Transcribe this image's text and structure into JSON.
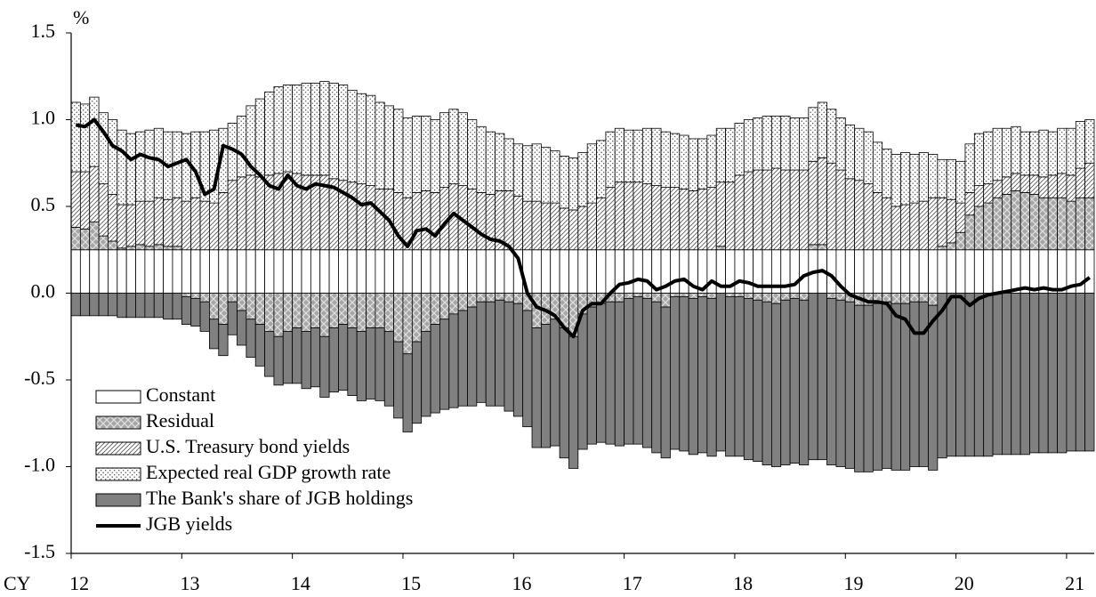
{
  "chart_data": {
    "type": "stacked-bar-line",
    "y_axis_label": "%",
    "x_axis_label": "CY",
    "legend": "lower left",
    "ylim": [
      -1.5,
      1.5
    ],
    "yticks": [
      1.5,
      {
        "value": 1,
        "label": "1.0"
      },
      0.5,
      {
        "value": 0,
        "label": "0.0"
      },
      -0.5,
      {
        "value": -1,
        "label": "-1.0"
      },
      -1.5
    ],
    "categories": [
      "12",
      null,
      null,
      null,
      null,
      null,
      null,
      null,
      null,
      null,
      null,
      null,
      "13",
      null,
      null,
      null,
      null,
      null,
      null,
      null,
      null,
      null,
      null,
      null,
      "14",
      null,
      null,
      null,
      null,
      null,
      null,
      null,
      null,
      null,
      null,
      null,
      "15",
      null,
      null,
      null,
      null,
      null,
      null,
      null,
      null,
      null,
      null,
      null,
      "16",
      null,
      null,
      null,
      null,
      null,
      null,
      null,
      null,
      null,
      null,
      null,
      "17",
      null,
      null,
      null,
      null,
      null,
      null,
      null,
      null,
      null,
      null,
      null,
      "18",
      null,
      null,
      null,
      null,
      null,
      null,
      null,
      null,
      null,
      null,
      null,
      "19",
      null,
      null,
      null,
      null,
      null,
      null,
      null,
      null,
      null,
      null,
      null,
      "20",
      null,
      null,
      null,
      null,
      null,
      null,
      null,
      null,
      null,
      null,
      null,
      "21",
      null,
      null
    ],
    "series": [
      {
        "name": "Constant",
        "type": "bar",
        "color": "#ffffff",
        "pattern": "solid",
        "values": [
          0.25,
          0.25,
          0.25,
          0.25,
          0.25,
          0.25,
          0.25,
          0.25,
          0.25,
          0.25,
          0.25,
          0.25,
          0.25,
          0.25,
          0.25,
          0.25,
          0.25,
          0.25,
          0.25,
          0.25,
          0.25,
          0.25,
          0.25,
          0.25,
          0.25,
          0.25,
          0.25,
          0.25,
          0.25,
          0.25,
          0.25,
          0.25,
          0.25,
          0.25,
          0.25,
          0.25,
          0.25,
          0.25,
          0.25,
          0.25,
          0.25,
          0.25,
          0.25,
          0.25,
          0.25,
          0.25,
          0.25,
          0.25,
          0.25,
          0.25,
          0.25,
          0.25,
          0.25,
          0.25,
          0.25,
          0.25,
          0.25,
          0.25,
          0.25,
          0.25,
          0.25,
          0.25,
          0.25,
          0.25,
          0.25,
          0.25,
          0.25,
          0.25,
          0.25,
          0.25,
          0.25,
          0.25,
          0.25,
          0.25,
          0.25,
          0.25,
          0.25,
          0.25,
          0.25,
          0.25,
          0.25,
          0.25,
          0.25,
          0.25,
          0.25,
          0.25,
          0.25,
          0.25,
          0.25,
          0.25,
          0.25,
          0.25,
          0.25,
          0.25,
          0.25,
          0.25,
          0.25,
          0.25,
          0.25,
          0.25,
          0.25,
          0.25,
          0.25,
          0.25,
          0.25,
          0.25,
          0.25,
          0.25,
          0.25,
          0.25,
          0.25
        ]
      },
      {
        "name": "Residual",
        "type": "bar",
        "color": "#a6a6a6",
        "pattern": "crosshatch",
        "values": [
          0.13,
          0.12,
          0.16,
          0.08,
          0.05,
          0.01,
          0.02,
          0.03,
          0.02,
          0.03,
          0.02,
          0.02,
          -0.02,
          -0.03,
          -0.05,
          -0.15,
          -0.18,
          -0.05,
          -0.1,
          -0.15,
          -0.18,
          -0.22,
          -0.25,
          -0.22,
          -0.2,
          -0.22,
          -0.2,
          -0.25,
          -0.2,
          -0.18,
          -0.2,
          -0.22,
          -0.2,
          -0.2,
          -0.22,
          -0.28,
          -0.35,
          -0.28,
          -0.22,
          -0.18,
          -0.15,
          -0.12,
          -0.1,
          -0.08,
          -0.05,
          -0.05,
          -0.04,
          -0.05,
          -0.06,
          -0.1,
          -0.2,
          -0.18,
          -0.15,
          -0.2,
          -0.25,
          -0.12,
          -0.08,
          -0.06,
          -0.05,
          -0.05,
          -0.03,
          -0.02,
          -0.03,
          -0.05,
          -0.08,
          -0.02,
          -0.02,
          -0.03,
          -0.02,
          -0.03,
          0.02,
          -0.02,
          -0.02,
          -0.03,
          -0.04,
          -0.05,
          -0.06,
          -0.04,
          -0.03,
          -0.04,
          0.03,
          0.03,
          -0.03,
          -0.04,
          -0.05,
          -0.07,
          -0.07,
          -0.06,
          -0.05,
          -0.06,
          -0.06,
          -0.05,
          -0.05,
          -0.07,
          0.02,
          0.04,
          0.1,
          0.2,
          0.25,
          0.27,
          0.3,
          0.32,
          0.34,
          0.33,
          0.32,
          0.3,
          0.3,
          0.3,
          0.28,
          0.3,
          0.3
        ]
      },
      {
        "name": "U.S. Treasury bond yields",
        "type": "bar",
        "color": "#ffffff",
        "pattern": "diagonal",
        "values": [
          0.32,
          0.33,
          0.32,
          0.3,
          0.27,
          0.25,
          0.24,
          0.25,
          0.26,
          0.27,
          0.27,
          0.28,
          0.28,
          0.3,
          0.28,
          0.27,
          0.33,
          0.4,
          0.42,
          0.43,
          0.42,
          0.43,
          0.44,
          0.45,
          0.44,
          0.43,
          0.43,
          0.43,
          0.41,
          0.4,
          0.39,
          0.38,
          0.37,
          0.35,
          0.35,
          0.33,
          0.3,
          0.33,
          0.34,
          0.33,
          0.36,
          0.38,
          0.37,
          0.35,
          0.33,
          0.32,
          0.34,
          0.34,
          0.31,
          0.28,
          0.28,
          0.27,
          0.27,
          0.24,
          0.23,
          0.25,
          0.27,
          0.3,
          0.36,
          0.39,
          0.39,
          0.39,
          0.38,
          0.37,
          0.36,
          0.36,
          0.35,
          0.34,
          0.35,
          0.36,
          0.37,
          0.39,
          0.43,
          0.45,
          0.46,
          0.46,
          0.47,
          0.46,
          0.46,
          0.46,
          0.48,
          0.5,
          0.5,
          0.46,
          0.41,
          0.4,
          0.38,
          0.33,
          0.3,
          0.25,
          0.26,
          0.27,
          0.28,
          0.3,
          0.28,
          0.25,
          0.17,
          0.13,
          0.12,
          0.11,
          0.1,
          0.1,
          0.1,
          0.1,
          0.11,
          0.12,
          0.13,
          0.14,
          0.15,
          0.17,
          0.2
        ]
      },
      {
        "name": "Expected real GDP growth rate",
        "type": "bar",
        "color": "#ffffff",
        "pattern": "dots",
        "values": [
          0.4,
          0.39,
          0.4,
          0.41,
          0.43,
          0.43,
          0.41,
          0.4,
          0.41,
          0.4,
          0.39,
          0.38,
          0.39,
          0.38,
          0.4,
          0.42,
          0.37,
          0.33,
          0.35,
          0.4,
          0.45,
          0.48,
          0.5,
          0.5,
          0.51,
          0.53,
          0.53,
          0.54,
          0.55,
          0.55,
          0.53,
          0.52,
          0.52,
          0.5,
          0.48,
          0.48,
          0.46,
          0.44,
          0.43,
          0.42,
          0.43,
          0.43,
          0.42,
          0.4,
          0.38,
          0.36,
          0.33,
          0.3,
          0.3,
          0.32,
          0.33,
          0.32,
          0.3,
          0.3,
          0.3,
          0.31,
          0.34,
          0.33,
          0.32,
          0.31,
          0.3,
          0.3,
          0.32,
          0.33,
          0.32,
          0.31,
          0.31,
          0.3,
          0.29,
          0.3,
          0.31,
          0.31,
          0.3,
          0.3,
          0.3,
          0.31,
          0.3,
          0.31,
          0.3,
          0.3,
          0.31,
          0.32,
          0.31,
          0.3,
          0.31,
          0.3,
          0.3,
          0.29,
          0.28,
          0.3,
          0.3,
          0.28,
          0.28,
          0.25,
          0.22,
          0.23,
          0.24,
          0.28,
          0.3,
          0.3,
          0.3,
          0.28,
          0.27,
          0.25,
          0.25,
          0.27,
          0.25,
          0.26,
          0.27,
          0.27,
          0.25
        ]
      },
      {
        "name": "The Bank's share of JGB holdings",
        "type": "bar",
        "color": "#808080",
        "pattern": "solid",
        "values": [
          -0.13,
          -0.13,
          -0.13,
          -0.13,
          -0.13,
          -0.14,
          -0.14,
          -0.14,
          -0.14,
          -0.14,
          -0.15,
          -0.15,
          -0.16,
          -0.16,
          -0.17,
          -0.17,
          -0.18,
          -0.19,
          -0.2,
          -0.22,
          -0.24,
          -0.26,
          -0.28,
          -0.3,
          -0.32,
          -0.33,
          -0.34,
          -0.35,
          -0.37,
          -0.38,
          -0.39,
          -0.4,
          -0.41,
          -0.42,
          -0.43,
          -0.44,
          -0.45,
          -0.47,
          -0.49,
          -0.51,
          -0.52,
          -0.54,
          -0.55,
          -0.57,
          -0.58,
          -0.6,
          -0.61,
          -0.63,
          -0.65,
          -0.67,
          -0.69,
          -0.71,
          -0.73,
          -0.75,
          -0.76,
          -0.78,
          -0.79,
          -0.8,
          -0.82,
          -0.83,
          -0.84,
          -0.85,
          -0.86,
          -0.87,
          -0.87,
          -0.88,
          -0.89,
          -0.9,
          -0.9,
          -0.91,
          -0.91,
          -0.92,
          -0.92,
          -0.93,
          -0.93,
          -0.94,
          -0.94,
          -0.95,
          -0.95,
          -0.95,
          -0.96,
          -0.96,
          -0.96,
          -0.96,
          -0.96,
          -0.96,
          -0.96,
          -0.96,
          -0.96,
          -0.96,
          -0.96,
          -0.95,
          -0.95,
          -0.95,
          -0.95,
          -0.94,
          -0.94,
          -0.94,
          -0.94,
          -0.94,
          -0.93,
          -0.93,
          -0.93,
          -0.93,
          -0.92,
          -0.92,
          -0.92,
          -0.92,
          -0.91,
          -0.91,
          -0.91
        ]
      },
      {
        "name": "JGB yields",
        "type": "line",
        "color": "#000000",
        "values": [
          0.97,
          0.96,
          1.0,
          0.93,
          0.85,
          0.82,
          0.77,
          0.8,
          0.78,
          0.77,
          0.73,
          0.75,
          0.77,
          0.7,
          0.57,
          0.6,
          0.85,
          0.83,
          0.8,
          0.73,
          0.68,
          0.62,
          0.6,
          0.68,
          0.62,
          0.6,
          0.63,
          0.62,
          0.61,
          0.58,
          0.55,
          0.51,
          0.52,
          0.47,
          0.42,
          0.33,
          0.27,
          0.36,
          0.37,
          0.33,
          0.4,
          0.46,
          0.42,
          0.38,
          0.34,
          0.31,
          0.3,
          0.27,
          0.2,
          0.0,
          -0.08,
          -0.1,
          -0.13,
          -0.2,
          -0.25,
          -0.1,
          -0.06,
          -0.06,
          0.0,
          0.05,
          0.06,
          0.08,
          0.07,
          0.02,
          0.04,
          0.07,
          0.08,
          0.04,
          0.02,
          0.07,
          0.04,
          0.04,
          0.07,
          0.06,
          0.04,
          0.04,
          0.04,
          0.04,
          0.05,
          0.1,
          0.12,
          0.13,
          0.1,
          0.04,
          -0.01,
          -0.03,
          -0.05,
          -0.05,
          -0.06,
          -0.13,
          -0.15,
          -0.23,
          -0.23,
          -0.16,
          -0.1,
          -0.02,
          -0.02,
          -0.07,
          -0.03,
          -0.01,
          0.0,
          0.01,
          0.02,
          0.03,
          0.02,
          0.03,
          0.02,
          0.02,
          0.04,
          0.05,
          0.09
        ]
      }
    ]
  }
}
